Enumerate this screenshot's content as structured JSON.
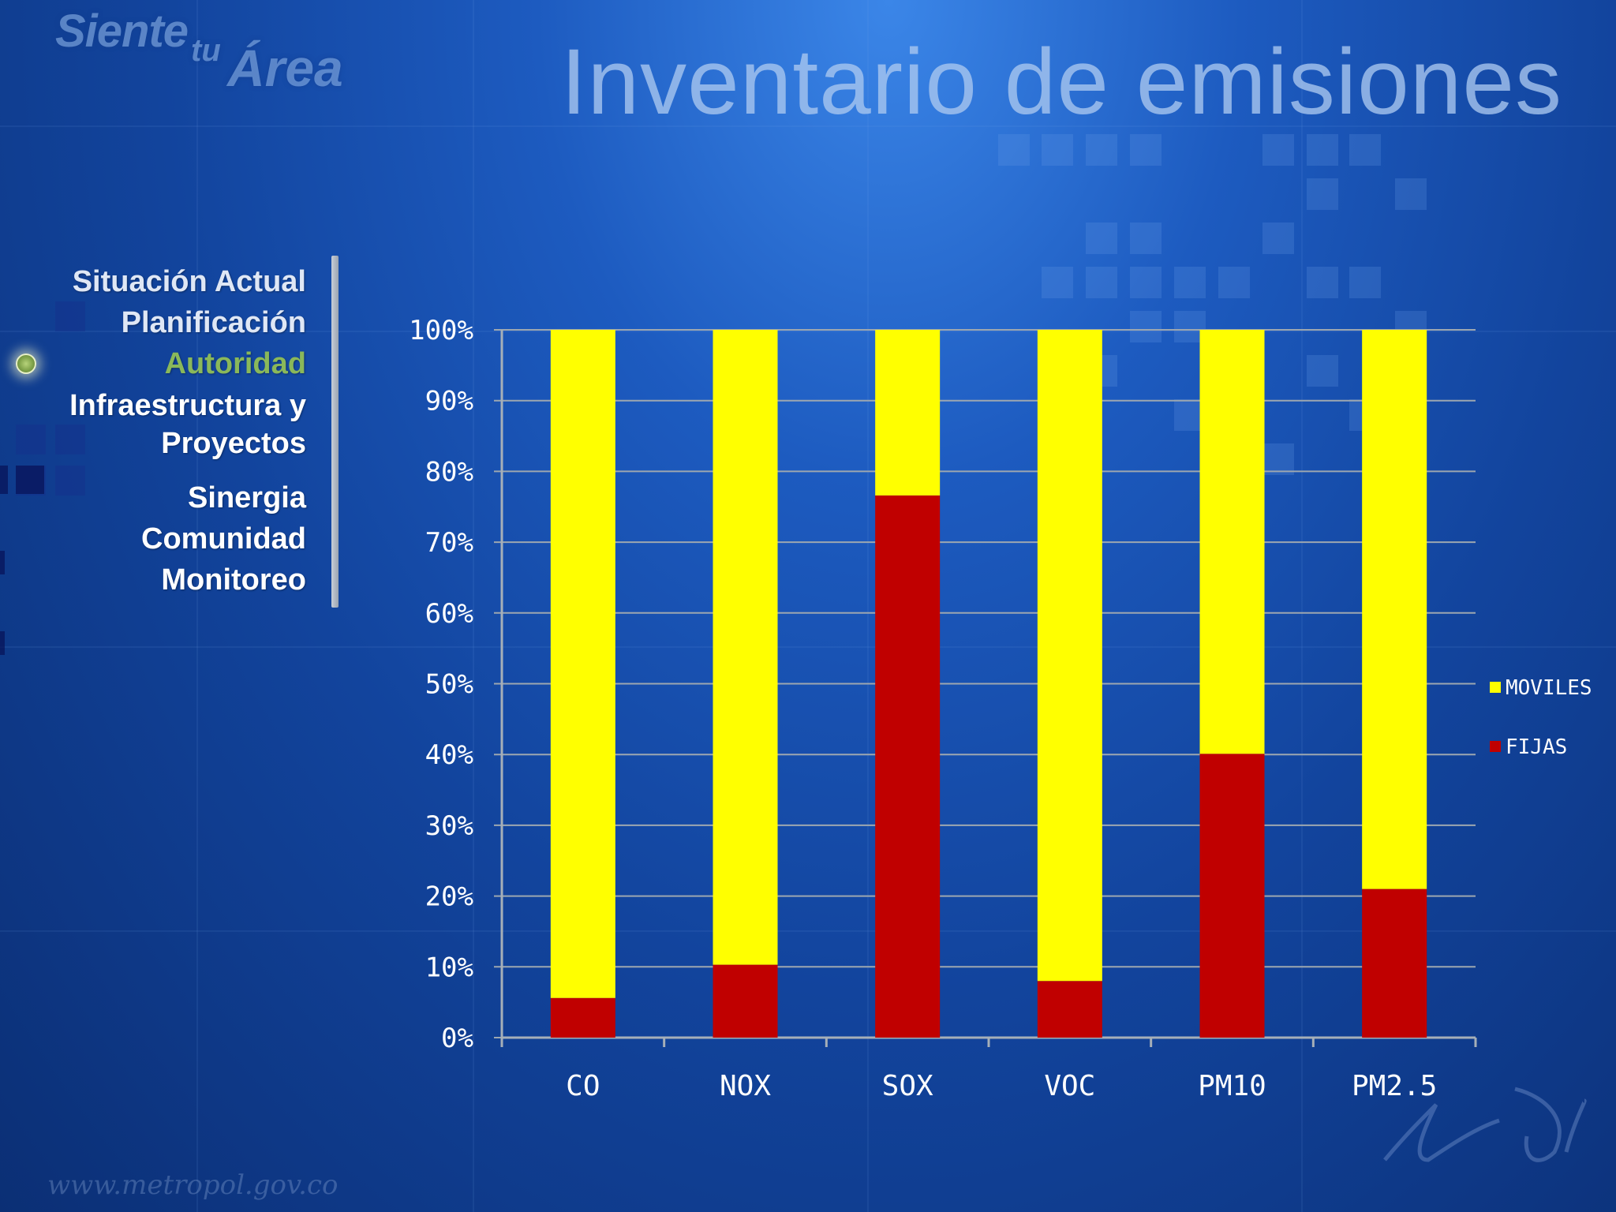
{
  "logo": {
    "line1": "Siente",
    "line2": "tu",
    "line3": "Área"
  },
  "header": {
    "title": "Inventario de emisiones"
  },
  "nav": {
    "items": [
      {
        "label": "Situación Actual",
        "state": "normal"
      },
      {
        "label": "Planificación",
        "state": "normal"
      },
      {
        "label": "Autoridad",
        "state": "active"
      },
      {
        "label": "Infraestructura y Proyectos",
        "state": "normal"
      },
      {
        "label": "Sinergia",
        "state": "normal"
      },
      {
        "label": "Comunidad",
        "state": "normal"
      },
      {
        "label": "Monitoreo",
        "state": "normal"
      }
    ]
  },
  "footer": {
    "url": "www.metropol.gov.co"
  },
  "colors": {
    "moviles": "#ffff00",
    "fijas": "#c00000"
  },
  "chart_data": {
    "type": "bar",
    "stacked": true,
    "categories": [
      "CO",
      "NOX",
      "SOX",
      "VOC",
      "PM10",
      "PM2.5"
    ],
    "series": [
      {
        "name": "FIJAS",
        "values": [
          5.6,
          10.3,
          76.6,
          8.0,
          40.1,
          21.0
        ]
      },
      {
        "name": "MOVILES",
        "values": [
          94.4,
          89.7,
          23.4,
          92.0,
          59.9,
          79.0
        ]
      }
    ],
    "ylim": [
      0,
      100
    ],
    "yticks": [
      "0%",
      "10%",
      "20%",
      "30%",
      "40%",
      "50%",
      "60%",
      "70%",
      "80%",
      "90%",
      "100%"
    ],
    "legend": [
      "MOVILES",
      "FIJAS"
    ],
    "legend_position": "right",
    "grid": true
  }
}
